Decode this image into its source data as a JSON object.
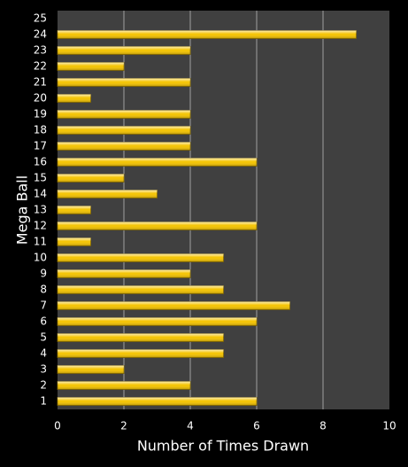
{
  "chart_data": {
    "type": "bar",
    "orientation": "horizontal",
    "categories": [
      "1",
      "2",
      "3",
      "4",
      "5",
      "6",
      "7",
      "8",
      "9",
      "10",
      "11",
      "12",
      "13",
      "14",
      "15",
      "16",
      "17",
      "18",
      "19",
      "20",
      "21",
      "22",
      "23",
      "24",
      "25"
    ],
    "values": [
      6,
      4,
      2,
      5,
      5,
      6,
      7,
      5,
      4,
      5,
      1,
      6,
      1,
      3,
      2,
      6,
      4,
      4,
      4,
      1,
      4,
      2,
      4,
      9,
      0
    ],
    "color": "#f5c400",
    "x_label": "Number of Times Drawn",
    "y_label": "Mega Ball",
    "xlim": [
      0,
      10
    ],
    "xticks": [
      0,
      2,
      4,
      6,
      8,
      10
    ],
    "grid": true
  }
}
